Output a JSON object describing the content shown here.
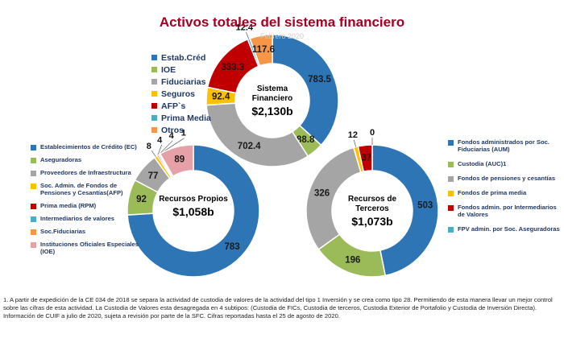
{
  "title": "Activos totales del sistema financiero",
  "subtitle": "Febrero 2020",
  "chart_data": [
    {
      "type": "pie",
      "center_label": "Sistema Financiero",
      "center_value": "$2,130b",
      "categories": [
        "Estab.Créd",
        "IOE",
        "Fiduciarias",
        "Seguros",
        "AFP`s",
        "Prima Media",
        "Otros"
      ],
      "values": [
        783.5,
        88.8,
        702.4,
        92.4,
        333.3,
        12.4,
        117.6
      ],
      "colors": [
        "#2e75b6",
        "#9bbb59",
        "#a5a5a5",
        "#ffc000",
        "#c00000",
        "#4bacc6",
        "#f79646"
      ]
    },
    {
      "type": "pie",
      "center_label": "Recursos Propios",
      "center_value": "$1,058b",
      "categories": [
        "Establecimientos de Crédito (EC)",
        "Aseguradoras",
        "Proveedores de Infraestructura",
        "Soc. Admin. de Fondos de Pensiones y Cesantías(AFP)",
        "Prima media (RPM)",
        "Intermediarios de valores",
        "Soc.Fiduciarias",
        "Instituciones Oficiales Especiales (IOE)"
      ],
      "values": [
        783,
        92,
        77,
        8,
        4,
        4,
        1,
        89
      ],
      "colors": [
        "#2e75b6",
        "#9bbb59",
        "#a5a5a5",
        "#ffc000",
        "#c00000",
        "#4bacc6",
        "#f79646",
        "#e6a1a8"
      ]
    },
    {
      "type": "pie",
      "center_label": "Recursos de Terceros",
      "center_value": "$1,073b",
      "categories": [
        "Fondos administrados por Soc. Fiduciarias (AUM)",
        "Custodia (AUC)1",
        "Fondos de pensiones y cesantías",
        "Fondos de prima media",
        "Fondos admin. por Intermediarios de Valores",
        "FPV admin. por Soc. Aseguradoras"
      ],
      "values": [
        503,
        196,
        326,
        12,
        37,
        0
      ],
      "colors": [
        "#2e75b6",
        "#9bbb59",
        "#a5a5a5",
        "#ffc000",
        "#c00000",
        "#4bacc6"
      ]
    }
  ],
  "footnotes": [
    "1. A partir de expedición de la CE 034 de 2018 se separa la actividad de custodia de valores de la actividad del tipo 1 Inversión y se crea como tipo 28. Permitiendo de esta manera llevar un mejor control sobre las cifras de esta actividad. La Custodia de Valores esta desagregada en 4 subtipos: (Custodia de FICs, Custodia de terceros, Custodia Exterior de Portafolio y Custodia de Inversión Directa).",
    "Información de CUIF a julio de 2020, sujeta a revisión por parte de la SFC. Cifras reportadas hasta el 25 de agosto de 2020."
  ]
}
